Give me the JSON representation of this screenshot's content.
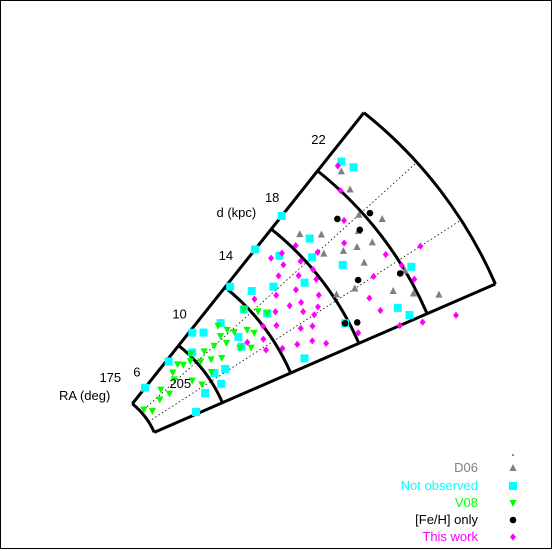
{
  "chart_data": {
    "type": "scatter",
    "projection": "polar-wedge",
    "ra_label": "RA (deg)",
    "d_label": "d (kpc)",
    "ra_ticks": [
      "175",
      "205"
    ],
    "d_ticks": [
      "6",
      "10",
      "14",
      "18",
      "22"
    ],
    "d_tick_values": [
      6,
      10,
      14,
      18,
      22
    ],
    "d_boundaries": [
      4,
      8,
      12,
      16,
      20,
      24
    ],
    "ra_range": [
      175,
      205
    ],
    "series": [
      {
        "name": "D06",
        "color": "#808080",
        "marker": "triangle-up",
        "points": [
          [
            180,
            16.8
          ],
          [
            183,
            17.6
          ],
          [
            188,
            17.9
          ],
          [
            192,
            18.4
          ],
          [
            195,
            17.2
          ],
          [
            197,
            20.0
          ],
          [
            187,
            19.2
          ],
          [
            189,
            18.6
          ],
          [
            186,
            17.0
          ],
          [
            194,
            16.2
          ],
          [
            199,
            18.9
          ],
          [
            201,
            19.8
          ],
          [
            185,
            19.8
          ],
          [
            188,
            20.6
          ],
          [
            190,
            19.4
          ],
          [
            203,
            21.0
          ],
          [
            178,
            20.8
          ],
          [
            181,
            20.4
          ]
        ]
      },
      {
        "name": "Not observed",
        "color": "#00ffff",
        "marker": "square",
        "points": [
          [
            175,
            5.1
          ],
          [
            176,
            7.0
          ],
          [
            176,
            9.0
          ],
          [
            176,
            12.2
          ],
          [
            175,
            14.6
          ],
          [
            175,
            16.9
          ],
          [
            177,
            21.2
          ],
          [
            179,
            21.4
          ],
          [
            180,
            15.2
          ],
          [
            181,
            12.8
          ],
          [
            181,
            10.4
          ],
          [
            181,
            8.2
          ],
          [
            183,
            11.8
          ],
          [
            184,
            13.8
          ],
          [
            185,
            16.4
          ],
          [
            188,
            12.6
          ],
          [
            188,
            15.2
          ],
          [
            191,
            10.4
          ],
          [
            194,
            9.0
          ],
          [
            193,
            8.4
          ],
          [
            198,
            7.4
          ],
          [
            198,
            8.4
          ],
          [
            197,
            20.4
          ],
          [
            202,
            18.7
          ],
          [
            204,
            19.1
          ],
          [
            203,
            13.0
          ],
          [
            200,
            15.8
          ],
          [
            204,
            6.5
          ],
          [
            190,
            17.4
          ],
          [
            188,
            10.6
          ],
          [
            182,
            17.0
          ],
          [
            179,
            9.4
          ]
        ]
      },
      {
        "name": "V08",
        "color": "#00ff00",
        "marker": "triangle-down",
        "points": [
          [
            190,
            4.5
          ],
          [
            185,
            4.2
          ],
          [
            187,
            5.2
          ],
          [
            188,
            5.8
          ],
          [
            183,
            5.6
          ],
          [
            184,
            6.5
          ],
          [
            181,
            6.7
          ],
          [
            182,
            7.4
          ],
          [
            180,
            7.2
          ],
          [
            181,
            8.1
          ],
          [
            183,
            7.8
          ],
          [
            184,
            8.7
          ],
          [
            186,
            8.2
          ],
          [
            188,
            8.7
          ],
          [
            185,
            9.3
          ],
          [
            187,
            9.9
          ],
          [
            190,
            9.2
          ],
          [
            191,
            10.3
          ],
          [
            186,
            10.6
          ],
          [
            188,
            11.2
          ],
          [
            190,
            11.4
          ],
          [
            193,
            10.8
          ],
          [
            181,
            10.2
          ],
          [
            184,
            10.4
          ],
          [
            183,
            11.8
          ],
          [
            186,
            12.3
          ],
          [
            188,
            12.6
          ],
          [
            192,
            8.3
          ],
          [
            194,
            7.5
          ],
          [
            184,
            9.9
          ],
          [
            190,
            7.2
          ]
        ]
      },
      {
        "name": "[Fe/H] only",
        "color": "#000000",
        "marker": "circle",
        "points": [
          [
            183,
            18.8
          ],
          [
            187,
            19.3
          ],
          [
            186,
            20.3
          ],
          [
            194,
            17.6
          ],
          [
            197,
            19.7
          ],
          [
            200,
            15.8
          ],
          [
            201,
            16.4
          ]
        ]
      },
      {
        "name": "This work",
        "color": "#ff00ff",
        "marker": "diamond",
        "points": [
          [
            179,
            14.8
          ],
          [
            180,
            15.4
          ],
          [
            181,
            16.2
          ],
          [
            182,
            15.0
          ],
          [
            183,
            14.4
          ],
          [
            184,
            15.8
          ],
          [
            185,
            16.8
          ],
          [
            186,
            15.2
          ],
          [
            187,
            16.0
          ],
          [
            188,
            14.6
          ],
          [
            189,
            15.8
          ],
          [
            190,
            13.8
          ],
          [
            191,
            14.4
          ],
          [
            192,
            15.4
          ],
          [
            193,
            14.2
          ],
          [
            194,
            15.0
          ],
          [
            195,
            14.6
          ],
          [
            196,
            13.6
          ],
          [
            197,
            14.2
          ],
          [
            183,
            12.6
          ],
          [
            186,
            13.6
          ],
          [
            189,
            13.0
          ],
          [
            190,
            12.0
          ],
          [
            192,
            12.6
          ],
          [
            191,
            10.8
          ],
          [
            193,
            11.6
          ],
          [
            196,
            11.4
          ],
          [
            198,
            12.2
          ],
          [
            199,
            13.0
          ],
          [
            200,
            13.8
          ],
          [
            202,
            14.4
          ],
          [
            203,
            16.2
          ],
          [
            205,
            18.4
          ],
          [
            206,
            19.6
          ],
          [
            207,
            21.4
          ],
          [
            201,
            17.8
          ],
          [
            198,
            17.6
          ],
          [
            195,
            18.4
          ],
          [
            193,
            19.6
          ],
          [
            187,
            18.2
          ],
          [
            184,
            19.0
          ],
          [
            180,
            20.0
          ],
          [
            177,
            20.9
          ],
          [
            195,
            21.4
          ],
          [
            196,
            20.0
          ],
          [
            199,
            20.2
          ]
        ]
      }
    ],
    "legend_position": "bottom-right"
  }
}
